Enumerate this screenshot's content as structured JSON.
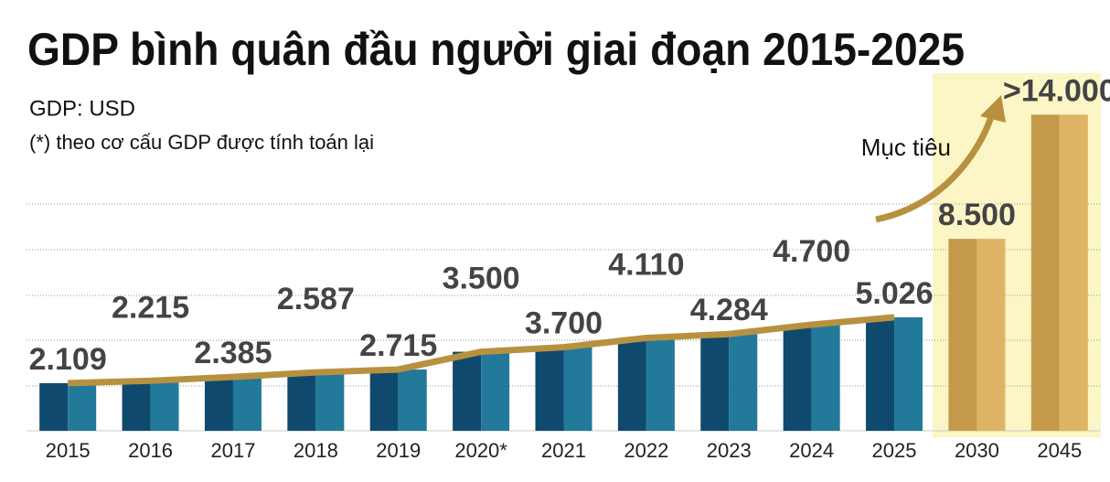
{
  "chart_data": {
    "type": "bar",
    "title": "GDP bình quân đầu người giai đoạn 2015-2025",
    "subtitle": "GDP: USD",
    "note": "(*) theo cơ cấu GDP được tính toán lại",
    "annotation": "Mục tiêu",
    "categories": [
      "2015",
      "2016",
      "2017",
      "2018",
      "2019",
      "2020*",
      "2021",
      "2022",
      "2023",
      "2024",
      "2025",
      "2030",
      "2045"
    ],
    "values": [
      2109,
      2215,
      2385,
      2587,
      2715,
      3500,
      3700,
      4110,
      4284,
      4700,
      5026,
      8500,
      14000
    ],
    "value_labels": [
      "2.109",
      "2.215",
      "2.385",
      "2.587",
      "2.715",
      "3.500",
      "3.700",
      "4.110",
      "4.284",
      "4.700",
      "5.026",
      "8.500",
      ">14.000"
    ],
    "colors": [
      "#0f4a6e",
      "#23799a"
    ],
    "target_colors": [
      "#c49a4a",
      "#deb564"
    ],
    "target_categories": [
      "2030",
      "2045"
    ],
    "line_color": "#b8913f",
    "ylim": [
      0,
      14500
    ]
  }
}
